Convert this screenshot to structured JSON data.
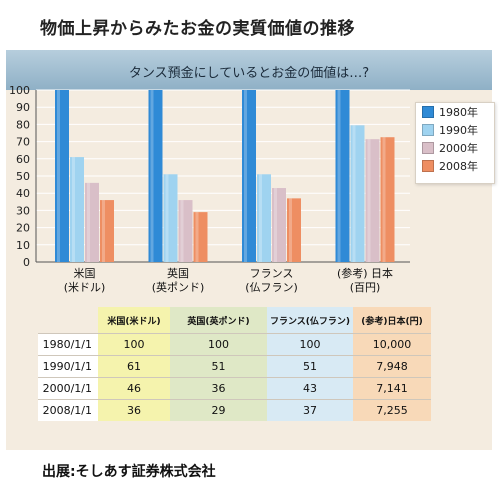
{
  "title": "物価上昇からみたお金の実質価値の推移",
  "subtitle": "タンス預金にしているとお金の価値は…?",
  "legend": [
    "1980年",
    "1990年",
    "2000年",
    "2008年"
  ],
  "colors": [
    "#2f8ad6",
    "#9fd3f0",
    "#d9bfc8",
    "#ee8e62"
  ],
  "chart_data": {
    "type": "bar",
    "categories": [
      [
        "米国",
        "(米ドル)"
      ],
      [
        "英国",
        "(英ポンド)"
      ],
      [
        "フランス",
        "(仏フラン)"
      ],
      [
        "(参考) 日本",
        "(百円)"
      ]
    ],
    "series": [
      {
        "name": "1980年",
        "values": [
          100,
          100,
          100,
          100
        ]
      },
      {
        "name": "1990年",
        "values": [
          61,
          51,
          51,
          79.48
        ]
      },
      {
        "name": "2000年",
        "values": [
          46,
          36,
          43,
          71.41
        ]
      },
      {
        "name": "2008年",
        "values": [
          36,
          29,
          37,
          72.55
        ]
      }
    ],
    "ylim": [
      0,
      100
    ],
    "yticks": [
      0,
      10,
      20,
      30,
      40,
      50,
      60,
      70,
      80,
      90,
      100
    ],
    "grid": true,
    "legend_position": "right"
  },
  "table": {
    "headers": [
      "米国(米ドル)",
      "英国(英ポンド)",
      "フランス(仏フラン)",
      "(参考)日本(円)"
    ],
    "rows": [
      {
        "date": "1980/1/1",
        "values": [
          "100",
          "100",
          "100",
          "10,000"
        ]
      },
      {
        "date": "1990/1/1",
        "values": [
          "61",
          "51",
          "51",
          "7,948"
        ]
      },
      {
        "date": "2000/1/1",
        "values": [
          "46",
          "36",
          "43",
          "7,141"
        ]
      },
      {
        "date": "2008/1/1",
        "values": [
          "36",
          "29",
          "37",
          "7,255"
        ]
      }
    ]
  },
  "source": "出展:そしあす証券株式会社"
}
